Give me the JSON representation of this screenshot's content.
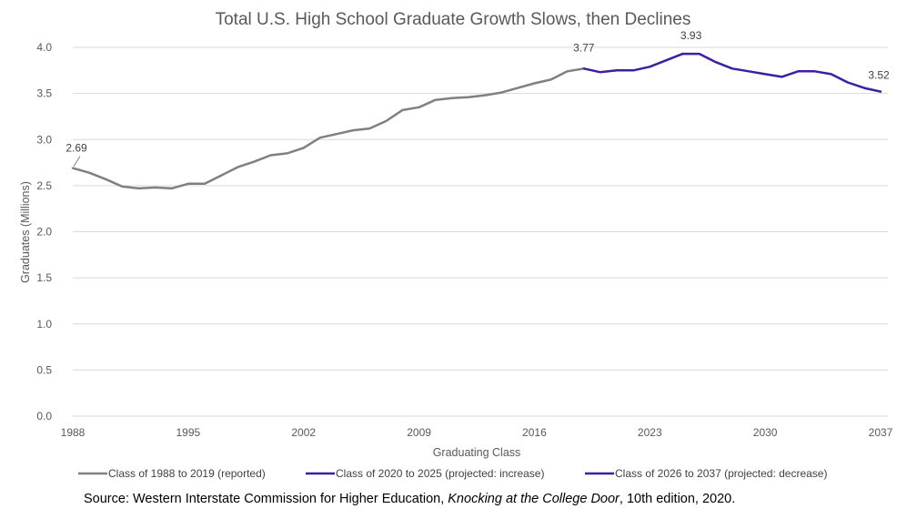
{
  "chart_data": {
    "type": "line",
    "title": "Total U.S. High School Graduate Growth Slows, then Declines",
    "xlabel": "Graduating Class",
    "ylabel": "Graduates (Millions)",
    "ylim": [
      0,
      4.0
    ],
    "xlim": [
      1988,
      2037
    ],
    "y_ticks": [
      "0.0",
      "0.5",
      "1.0",
      "1.5",
      "2.0",
      "2.5",
      "3.0",
      "3.5",
      "4.0"
    ],
    "x_ticks": [
      "1988",
      "1995",
      "2002",
      "2009",
      "2016",
      "2023",
      "2030",
      "2037"
    ],
    "grid": "horizontal",
    "legend_position": "bottom",
    "series": [
      {
        "name": "Class of 1988 to 2019 (reported)",
        "color": "#808080",
        "x": [
          1988,
          1989,
          1990,
          1991,
          1992,
          1993,
          1994,
          1995,
          1996,
          1997,
          1998,
          1999,
          2000,
          2001,
          2002,
          2003,
          2004,
          2005,
          2006,
          2007,
          2008,
          2009,
          2010,
          2011,
          2012,
          2013,
          2014,
          2015,
          2016,
          2017,
          2018,
          2019
        ],
        "values": [
          2.69,
          2.64,
          2.57,
          2.49,
          2.47,
          2.48,
          2.47,
          2.52,
          2.52,
          2.61,
          2.7,
          2.76,
          2.83,
          2.85,
          2.91,
          3.02,
          3.06,
          3.1,
          3.12,
          3.2,
          3.32,
          3.35,
          3.43,
          3.45,
          3.46,
          3.48,
          3.51,
          3.56,
          3.61,
          3.65,
          3.74,
          3.77
        ]
      },
      {
        "name": "Class of 2020 to 2025 (projected: increase)",
        "color": "#3C1FA3",
        "x": [
          2019,
          2020,
          2021,
          2022,
          2023,
          2024,
          2025
        ],
        "values": [
          3.77,
          3.73,
          3.75,
          3.75,
          3.79,
          3.86,
          3.93
        ]
      },
      {
        "name": "Class of 2026 to 2037 (projected: decrease)",
        "color": "#3C1FA3",
        "x": [
          2025,
          2026,
          2027,
          2028,
          2029,
          2030,
          2031,
          2032,
          2033,
          2034,
          2035,
          2036,
          2037
        ],
        "values": [
          3.93,
          3.93,
          3.84,
          3.77,
          3.74,
          3.71,
          3.68,
          3.74,
          3.74,
          3.71,
          3.62,
          3.56,
          3.52
        ]
      }
    ],
    "annotations": [
      {
        "x": 1988,
        "y": 2.69,
        "text": "2.69"
      },
      {
        "x": 2019,
        "y": 3.77,
        "text": "3.77"
      },
      {
        "x": 2025.5,
        "y": 3.93,
        "text": "3.93"
      },
      {
        "x": 2037,
        "y": 3.52,
        "text": "3.52"
      }
    ]
  },
  "source": {
    "prefix": "Source: Western Interstate Commission for Higher Education, ",
    "italic": "Knocking at the College Door",
    "suffix": ", 10th edition, 2020."
  }
}
